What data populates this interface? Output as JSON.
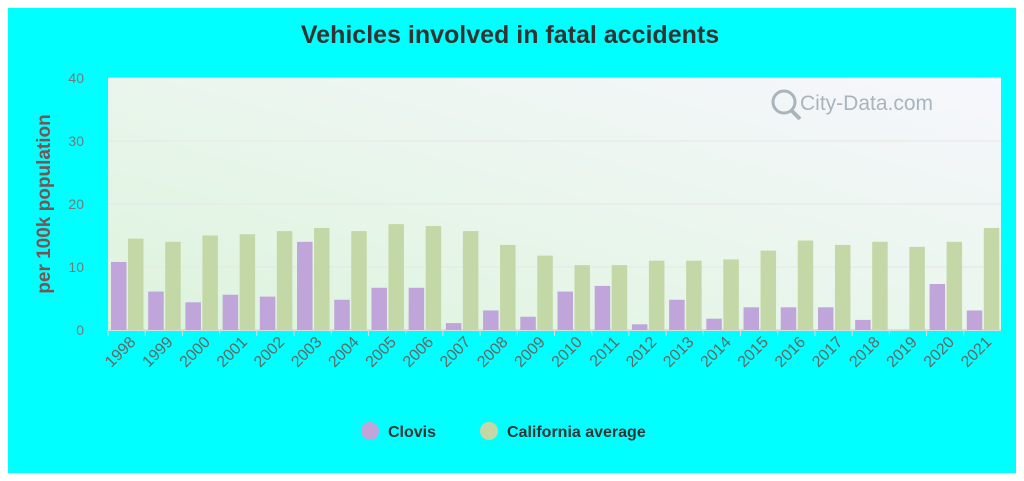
{
  "watermark": "City-Data.com",
  "colors": {
    "background": "#00ffff",
    "plot_top": "#f7f7fd",
    "plot_bottom": "#dcf4dc",
    "clovis": "#c0a5da",
    "california": "#c3d8a6"
  },
  "chart_data": {
    "type": "bar",
    "title": "Vehicles involved in fatal accidents",
    "xlabel": "",
    "ylabel": "per 100k population",
    "ylim": [
      0,
      40
    ],
    "yticks": [
      0,
      10,
      20,
      30,
      40
    ],
    "grid": true,
    "legend_position": "bottom",
    "categories": [
      "1998",
      "1999",
      "2000",
      "2001",
      "2002",
      "2003",
      "2004",
      "2005",
      "2006",
      "2007",
      "2008",
      "2009",
      "2010",
      "2011",
      "2012",
      "2013",
      "2014",
      "2015",
      "2016",
      "2017",
      "2018",
      "2019",
      "2020",
      "2021"
    ],
    "series": [
      {
        "name": "Clovis",
        "color": "#c0a5da",
        "values": [
          10.8,
          6.1,
          4.4,
          5.6,
          5.3,
          14.0,
          4.8,
          6.7,
          6.7,
          1.1,
          3.1,
          2.1,
          6.1,
          7.0,
          0.9,
          4.8,
          1.8,
          3.6,
          3.6,
          3.6,
          1.6,
          0,
          7.3,
          3.1
        ]
      },
      {
        "name": "California average",
        "color": "#c3d8a6",
        "values": [
          14.5,
          14.0,
          15.0,
          15.2,
          15.7,
          16.2,
          15.7,
          16.8,
          16.5,
          15.7,
          13.5,
          11.8,
          10.3,
          10.3,
          11.0,
          11.0,
          11.2,
          12.6,
          14.2,
          13.5,
          14.0,
          13.2,
          14.0,
          16.2
        ]
      }
    ]
  }
}
